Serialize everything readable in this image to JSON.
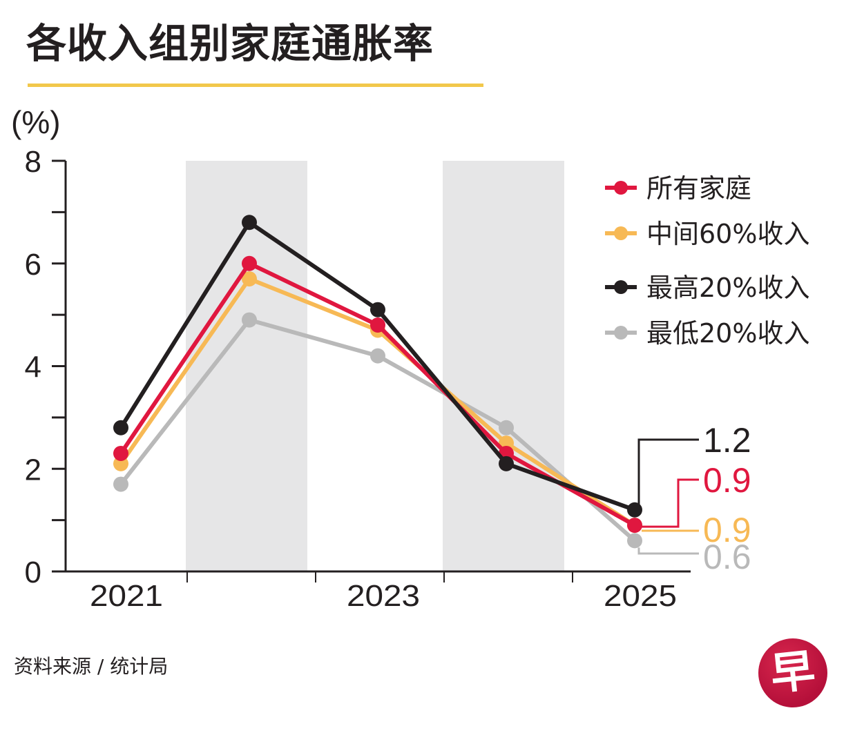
{
  "header": {
    "title": "各收入组别家庭通胀率",
    "unit": "(%)"
  },
  "footer": {
    "source": "资料来源 / 统计局",
    "logo_glyph": "早",
    "logo_name": "zaobao-logo"
  },
  "colors": {
    "title_rule": "#f2c84b",
    "all_households": "#e0173f",
    "middle_60": "#f7b955",
    "top_20": "#231f20",
    "bottom_20": "#b9b9b9",
    "band": "#e6e6e7",
    "axis": "#231f20"
  },
  "chart_data": {
    "type": "line",
    "title": "各收入组别家庭通胀率",
    "ylabel": "(%)",
    "xlabel": "",
    "x": [
      2021,
      2022,
      2023,
      2024,
      2025
    ],
    "x_tick_labels": [
      "2021",
      "2023",
      "2025"
    ],
    "y_tick_labels": [
      "0",
      "2",
      "4",
      "6",
      "8"
    ],
    "ylim": [
      0,
      8
    ],
    "y_minor_step": 1,
    "grid": false,
    "shaded_years": [
      2022,
      2024
    ],
    "legend_position": "top-right",
    "series": [
      {
        "name": "所有家庭",
        "key": "all_households",
        "values": [
          2.3,
          6.0,
          4.8,
          2.3,
          0.9
        ],
        "end_label": "0.9"
      },
      {
        "name": "中间60%收入",
        "key": "middle_60",
        "values": [
          2.1,
          5.7,
          4.7,
          2.5,
          0.9
        ],
        "end_label": "0.9"
      },
      {
        "name": "最高20%收入",
        "key": "top_20",
        "values": [
          2.8,
          6.8,
          5.1,
          2.1,
          1.2
        ],
        "end_label": "1.2"
      },
      {
        "name": "最低20%收入",
        "key": "bottom_20",
        "values": [
          1.7,
          4.9,
          4.2,
          2.8,
          0.6
        ],
        "end_label": "0.6"
      }
    ]
  }
}
